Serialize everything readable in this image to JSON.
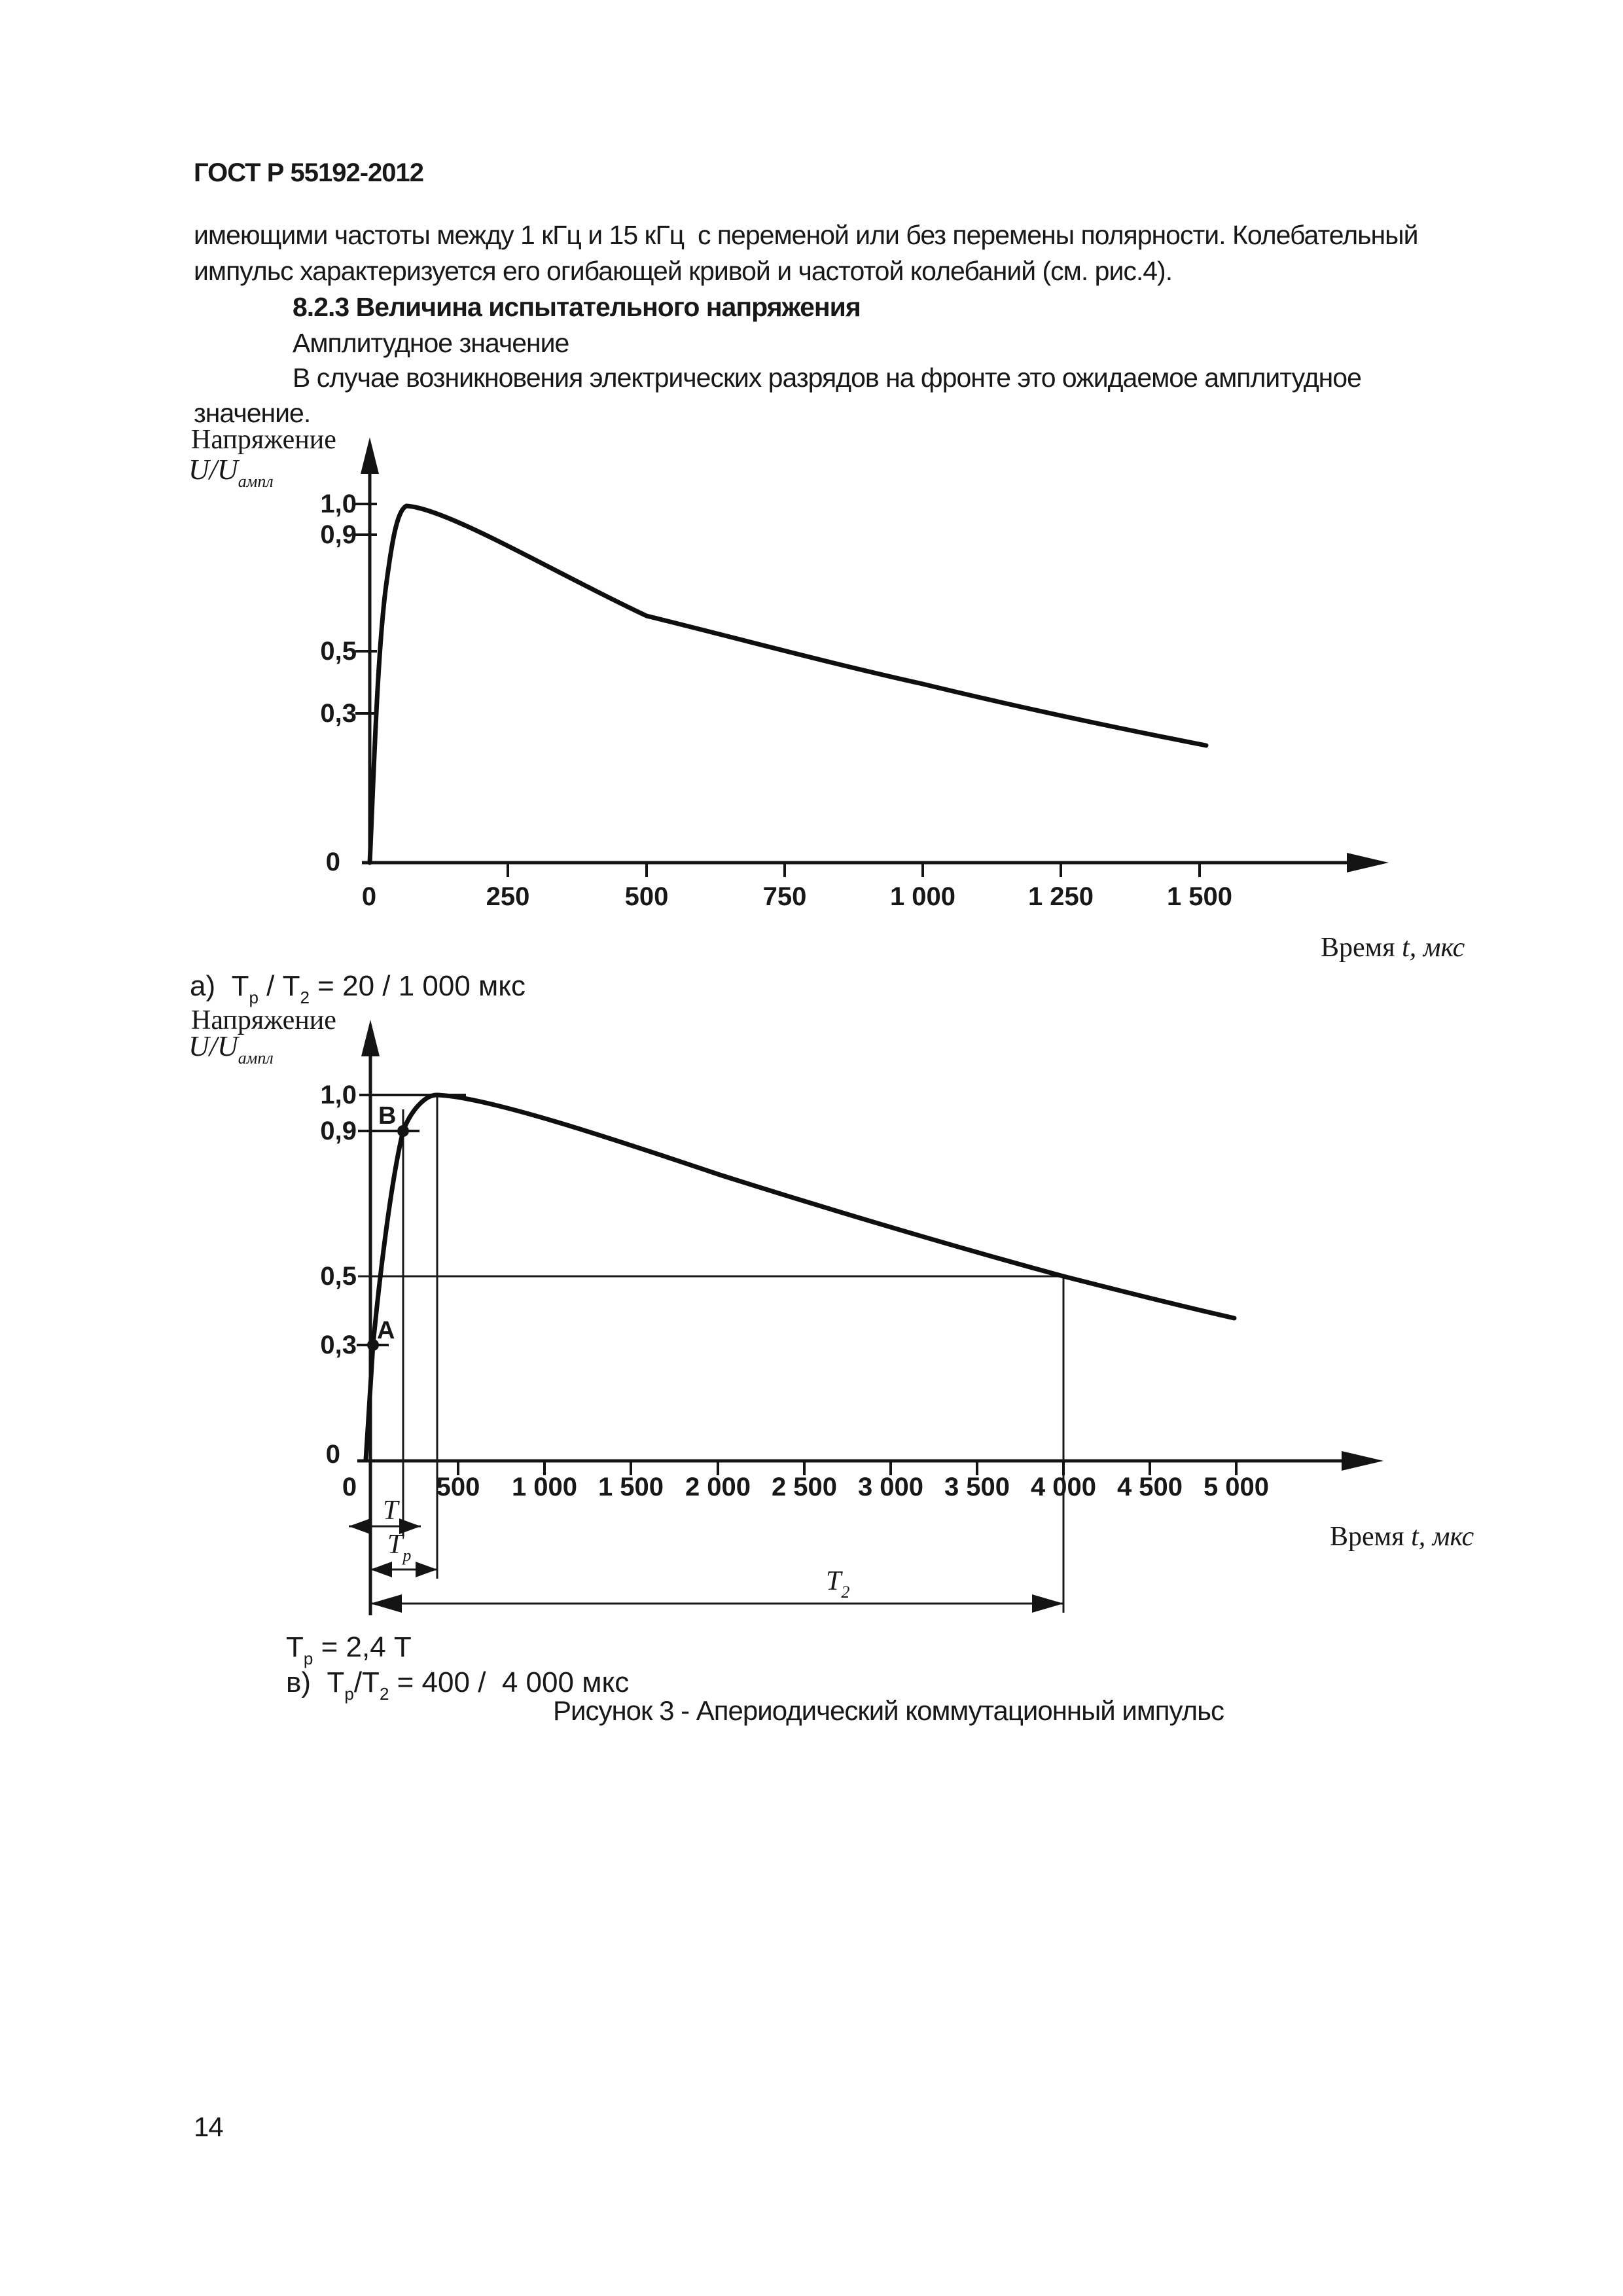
{
  "header": {
    "title": "ГОСТ Р 55192-2012"
  },
  "paragraphs": {
    "line1": "имеющими частоты между 1 кГц и 15 кГц  с переменой или без перемены полярности. Колебательный",
    "line2": "импульс характеризуется его огибающей кривой и частотой колебаний (см. рис.4).",
    "heading": "8.2.3 Величина испытательного напряжения",
    "line3": "Амплитудное значение",
    "line4": "В случае возникновения электрических разрядов на фронте это ожидаемое амплитудное",
    "line5": "значение."
  },
  "fig_a": {
    "y_axis_title": "Напряжение",
    "y_axis_unit": {
      "base": "U/U",
      "sub": "ампл"
    },
    "x_axis_title": {
      "p1": "Время ",
      "it": "t",
      "p2": ", мкс"
    },
    "y_tick_labels": [
      "1,0",
      "0,9",
      "0,5",
      "0,3"
    ],
    "y_zero": "0",
    "x_zero": "0",
    "x_tick_labels": [
      "250",
      "500",
      "750",
      "1 000",
      "1 250",
      "1 500"
    ],
    "caption": {
      "p1": "а)  Т",
      "s1": "р",
      "p2": " / Т",
      "s2": "2",
      "p3": " = 20 / 1 000 мкс"
    }
  },
  "fig_b": {
    "y_axis_title": "Напряжение",
    "y_axis_unit": {
      "base": "U/U",
      "sub": "ампл"
    },
    "x_axis_title": {
      "p1": "Время ",
      "it": "t",
      "p2": ", мкс"
    },
    "y_tick_labels": [
      "1,0",
      "0,9",
      "0,5",
      "0,3"
    ],
    "y_zero": "0",
    "x_zero": "0",
    "x_tick_labels": [
      "500",
      "1 000",
      "1 500",
      "2 000",
      "2 500",
      "3 000",
      "3 500",
      "4 000",
      "4 500",
      "5 000"
    ],
    "point_a": "A",
    "point_b": "B",
    "dim_t": "Т",
    "dim_tp": {
      "base": "Т",
      "sub": "р"
    },
    "dim_t2": {
      "base": "Т",
      "sub": "2"
    },
    "formula": {
      "p1": "Т",
      "s1": "р",
      "p2": " = 2,4 Т"
    },
    "caption": {
      "p1": "в)  Т",
      "s1": "р",
      "p2": "/Т",
      "s2": "2",
      "p3": " = 400 /  4 000 мкс"
    }
  },
  "figure_caption": "Рисунок 3 - Апериодический коммутационный импульс",
  "page": {
    "number": "14"
  },
  "chart_data": [
    {
      "type": "line",
      "title": "а) Тр / Т2 = 20 / 1 000 мкс",
      "xlabel": "Время t, мкс",
      "ylabel": "Напряжение U/Uампл",
      "x_ticks": [
        0,
        250,
        500,
        750,
        1000,
        1250,
        1500
      ],
      "y_ticks": [
        0,
        0.3,
        0.5,
        0.9,
        1.0
      ],
      "xlim": [
        0,
        1800
      ],
      "ylim": [
        0,
        1.1
      ],
      "grid": false,
      "legend_position": "none",
      "series": [
        {
          "name": "Апериодический коммутационный импульс 20/1000 мкс",
          "x": [
            0,
            20,
            100,
            250,
            500,
            750,
            1000,
            1250,
            1500
          ],
          "y": [
            0,
            1.0,
            0.96,
            0.84,
            0.69,
            0.58,
            0.5,
            0.41,
            0.33
          ]
        }
      ],
      "annotations": {
        "Tp_us": 20,
        "T2_us": 1000
      }
    },
    {
      "type": "line",
      "title": "в) Тр/Т2 = 400 / 4 000 мкс",
      "xlabel": "Время t, мкс",
      "ylabel": "Напряжение U/Uампл",
      "x_ticks": [
        0,
        500,
        1000,
        1500,
        2000,
        2500,
        3000,
        3500,
        4000,
        4500,
        5000
      ],
      "y_ticks": [
        0,
        0.3,
        0.5,
        0.9,
        1.0
      ],
      "xlim": [
        0,
        5600
      ],
      "ylim": [
        0,
        1.1
      ],
      "grid": false,
      "legend_position": "none",
      "series": [
        {
          "name": "Апериодический коммутационный импульс 400/4000 мкс",
          "x": [
            0,
            10,
            190,
            400,
            1000,
            2000,
            3000,
            4000,
            5000
          ],
          "y": [
            0,
            0.3,
            0.9,
            1.0,
            0.93,
            0.79,
            0.65,
            0.5,
            0.39
          ]
        }
      ],
      "points": [
        {
          "label": "A",
          "level": 0.3
        },
        {
          "label": "B",
          "level": 0.9
        }
      ],
      "annotations": {
        "T_formula": "Тр = 2,4 Т",
        "Tp_us": 400,
        "T2_us": 4000,
        "half_value_level": 0.5
      }
    }
  ]
}
